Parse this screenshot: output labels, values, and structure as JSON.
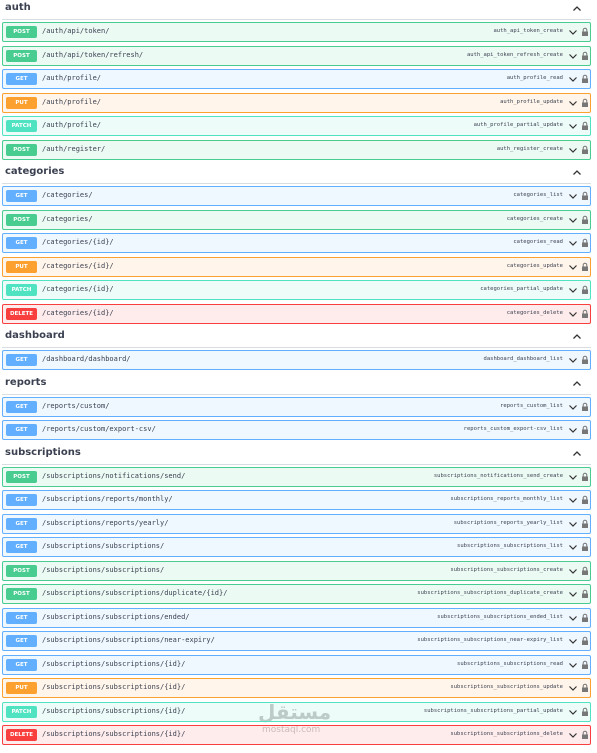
{
  "method_colors": {
    "POST": "#49cc90",
    "GET": "#61affe",
    "PUT": "#fca130",
    "PATCH": "#50e3c2",
    "DELETE": "#f93e3e"
  },
  "sections": [
    {
      "name": "auth",
      "endpoints": [
        {
          "method": "POST",
          "path": "/auth/api/token/",
          "operation": "auth_api_token_create"
        },
        {
          "method": "POST",
          "path": "/auth/api/token/refresh/",
          "operation": "auth_api_token_refresh_create"
        },
        {
          "method": "GET",
          "path": "/auth/profile/",
          "operation": "auth_profile_read"
        },
        {
          "method": "PUT",
          "path": "/auth/profile/",
          "operation": "auth_profile_update"
        },
        {
          "method": "PATCH",
          "path": "/auth/profile/",
          "operation": "auth_profile_partial_update"
        },
        {
          "method": "POST",
          "path": "/auth/register/",
          "operation": "auth_register_create"
        }
      ]
    },
    {
      "name": "categories",
      "endpoints": [
        {
          "method": "GET",
          "path": "/categories/",
          "operation": "categories_list"
        },
        {
          "method": "POST",
          "path": "/categories/",
          "operation": "categories_create"
        },
        {
          "method": "GET",
          "path": "/categories/{id}/",
          "operation": "categories_read"
        },
        {
          "method": "PUT",
          "path": "/categories/{id}/",
          "operation": "categories_update"
        },
        {
          "method": "PATCH",
          "path": "/categories/{id}/",
          "operation": "categories_partial_update"
        },
        {
          "method": "DELETE",
          "path": "/categories/{id}/",
          "operation": "categories_delete"
        }
      ]
    },
    {
      "name": "dashboard",
      "endpoints": [
        {
          "method": "GET",
          "path": "/dashboard/dashboard/",
          "operation": "dashboard_dashboard_list"
        }
      ]
    },
    {
      "name": "reports",
      "endpoints": [
        {
          "method": "GET",
          "path": "/reports/custom/",
          "operation": "reports_custom_list"
        },
        {
          "method": "GET",
          "path": "/reports/custom/export-csv/",
          "operation": "reports_custom_export-csv_list"
        }
      ]
    },
    {
      "name": "subscriptions",
      "endpoints": [
        {
          "method": "POST",
          "path": "/subscriptions/notifications/send/",
          "operation": "subscriptions_notifications_send_create"
        },
        {
          "method": "GET",
          "path": "/subscriptions/reports/monthly/",
          "operation": "subscriptions_reports_monthly_list"
        },
        {
          "method": "GET",
          "path": "/subscriptions/reports/yearly/",
          "operation": "subscriptions_reports_yearly_list"
        },
        {
          "method": "GET",
          "path": "/subscriptions/subscriptions/",
          "operation": "subscriptions_subscriptions_list"
        },
        {
          "method": "POST",
          "path": "/subscriptions/subscriptions/",
          "operation": "subscriptions_subscriptions_create"
        },
        {
          "method": "POST",
          "path": "/subscriptions/subscriptions/duplicate/{id}/",
          "operation": "subscriptions_subscriptions_duplicate_create"
        },
        {
          "method": "GET",
          "path": "/subscriptions/subscriptions/ended/",
          "operation": "subscriptions_subscriptions_ended_list"
        },
        {
          "method": "GET",
          "path": "/subscriptions/subscriptions/near-expiry/",
          "operation": "subscriptions_subscriptions_near-expiry_list"
        },
        {
          "method": "GET",
          "path": "/subscriptions/subscriptions/{id}/",
          "operation": "subscriptions_subscriptions_read"
        },
        {
          "method": "PUT",
          "path": "/subscriptions/subscriptions/{id}/",
          "operation": "subscriptions_subscriptions_update"
        },
        {
          "method": "PATCH",
          "path": "/subscriptions/subscriptions/{id}/",
          "operation": "subscriptions_subscriptions_partial_update"
        },
        {
          "method": "DELETE",
          "path": "/subscriptions/subscriptions/{id}/",
          "operation": "subscriptions_subscriptions_delete"
        }
      ]
    }
  ],
  "watermark": {
    "brand": "مستقل",
    "site": "mostaql.com"
  }
}
